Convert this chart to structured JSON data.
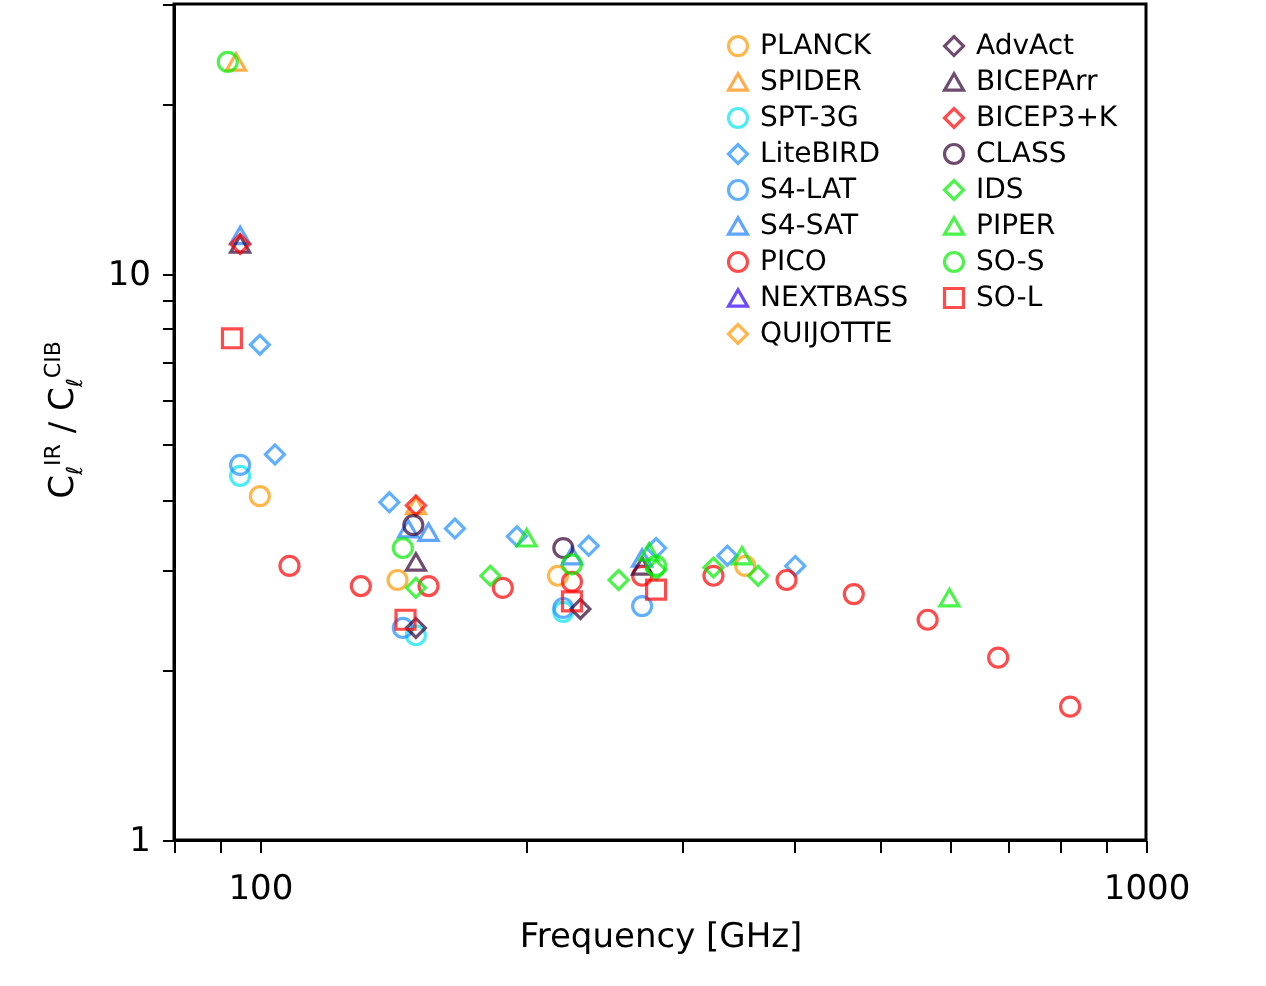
{
  "chart_data": {
    "type": "scatter",
    "xlabel": "Frequency [GHz]",
    "ylabel": "C$_{ℓ}$$^{IR}$ / C$_{ℓ}$$^{CIB}$",
    "log": "xy",
    "grid": false,
    "legend": "top right",
    "xlim": [
      80,
      1000
    ],
    "xticks": [
      {
        "value": 80,
        "label": null
      },
      {
        "value": 90,
        "label": null
      },
      100,
      {
        "value": 200,
        "label": null
      },
      {
        "value": 300,
        "label": null
      },
      {
        "value": 400,
        "label": null
      },
      {
        "value": 500,
        "label": null
      },
      {
        "value": 600,
        "label": null
      },
      {
        "value": 700,
        "label": null
      },
      {
        "value": 800,
        "label": null
      },
      {
        "value": 900,
        "label": null
      },
      1000
    ],
    "ylim": [
      1,
      30
    ],
    "yticks": [
      1,
      {
        "value": 2,
        "label": null
      },
      {
        "value": 3,
        "label": null
      },
      {
        "value": 4,
        "label": null
      },
      {
        "value": 5,
        "label": null
      },
      {
        "value": 6,
        "label": null
      },
      {
        "value": 7,
        "label": null
      },
      {
        "value": 8,
        "label": null
      },
      {
        "value": 9,
        "label": null
      },
      10,
      {
        "value": 20,
        "label": null
      },
      {
        "value": 30,
        "label": null
      }
    ],
    "series": [
      {
        "name": "PLANCK",
        "color": "#ff9900",
        "marker": "circle",
        "x": [
          100,
          143,
          217,
          353
        ],
        "values": [
          4.05,
          2.88,
          2.93,
          3.05
        ]
      },
      {
        "name": "SPIDER",
        "color": "#ff8c00",
        "marker": "triangle",
        "x": [
          94,
          150
        ],
        "values": [
          23.7,
          3.9
        ]
      },
      {
        "name": "SPT-3G",
        "color": "#00e5ee",
        "marker": "circle",
        "x": [
          95,
          150,
          220
        ],
        "values": [
          4.4,
          2.3,
          2.53
        ]
      },
      {
        "name": "LiteBIRD",
        "color": "#1e90ff",
        "marker": "diamond",
        "x": [
          100,
          104,
          140,
          166,
          195,
          235,
          280,
          337,
          402
        ],
        "values": [
          7.5,
          4.8,
          3.95,
          3.55,
          3.44,
          3.31,
          3.28,
          3.18,
          3.05
        ]
      },
      {
        "name": "S4-LAT",
        "color": "#1e90ff",
        "marker": "circle",
        "x": [
          95,
          145,
          220,
          270
        ],
        "values": [
          4.6,
          2.37,
          2.57,
          2.59
        ]
      },
      {
        "name": "S4-SAT",
        "color": "#1e7fff",
        "marker": "triangle",
        "x": [
          95,
          147,
          155,
          225,
          270
        ],
        "values": [
          11.7,
          3.55,
          3.5,
          3.18,
          3.15
        ]
      },
      {
        "name": "PICO",
        "color": "#ff0000",
        "marker": "circle",
        "x": [
          108,
          130,
          155,
          188,
          225,
          270,
          325,
          393,
          468,
          567,
          681,
          821
        ],
        "values": [
          3.05,
          2.81,
          2.81,
          2.79,
          2.86,
          2.93,
          2.93,
          2.88,
          2.72,
          2.45,
          2.1,
          1.72
        ]
      },
      {
        "name": "NEXTBASS",
        "color": "#3300ff",
        "marker": "triangle"
      },
      {
        "name": "QUIJOTTE",
        "color": "#ff9900",
        "marker": "diamond"
      },
      {
        "name": "AdvAct",
        "color": "#330033",
        "marker": "diamond",
        "x": [
          150,
          230
        ],
        "values": [
          2.37,
          2.56
        ]
      },
      {
        "name": "BICEPArr",
        "color": "#330033",
        "marker": "triangle",
        "x": [
          95,
          150,
          270
        ],
        "values": [
          11.3,
          3.1,
          3.05
        ]
      },
      {
        "name": "BICEP3+K",
        "color": "#ff0000",
        "marker": "diamond",
        "x": [
          95,
          150
        ],
        "values": [
          11.3,
          3.9
        ]
      },
      {
        "name": "CLASS",
        "color": "#330033",
        "marker": "circle",
        "x": [
          149,
          220
        ],
        "values": [
          3.6,
          3.28
        ]
      },
      {
        "name": "IDS",
        "color": "#00ee00",
        "marker": "diamond",
        "x": [
          150,
          182,
          254,
          280,
          325,
          365
        ],
        "values": [
          2.79,
          2.93,
          2.88,
          3.0,
          3.03,
          2.93
        ]
      },
      {
        "name": "PIPER",
        "color": "#00ee00",
        "marker": "triangle",
        "x": [
          200,
          275,
          350,
          600
        ],
        "values": [
          3.42,
          3.23,
          3.18,
          2.68
        ]
      },
      {
        "name": "SO-S",
        "color": "#00ee00",
        "marker": "circle",
        "x": [
          92,
          145,
          225,
          280
        ],
        "values": [
          23.7,
          3.28,
          3.07,
          3.05
        ]
      },
      {
        "name": "SO-L",
        "color": "#ff0000",
        "marker": "square",
        "x": [
          93,
          146,
          225,
          280
        ],
        "values": [
          7.7,
          2.45,
          2.64,
          2.77
        ]
      }
    ]
  }
}
